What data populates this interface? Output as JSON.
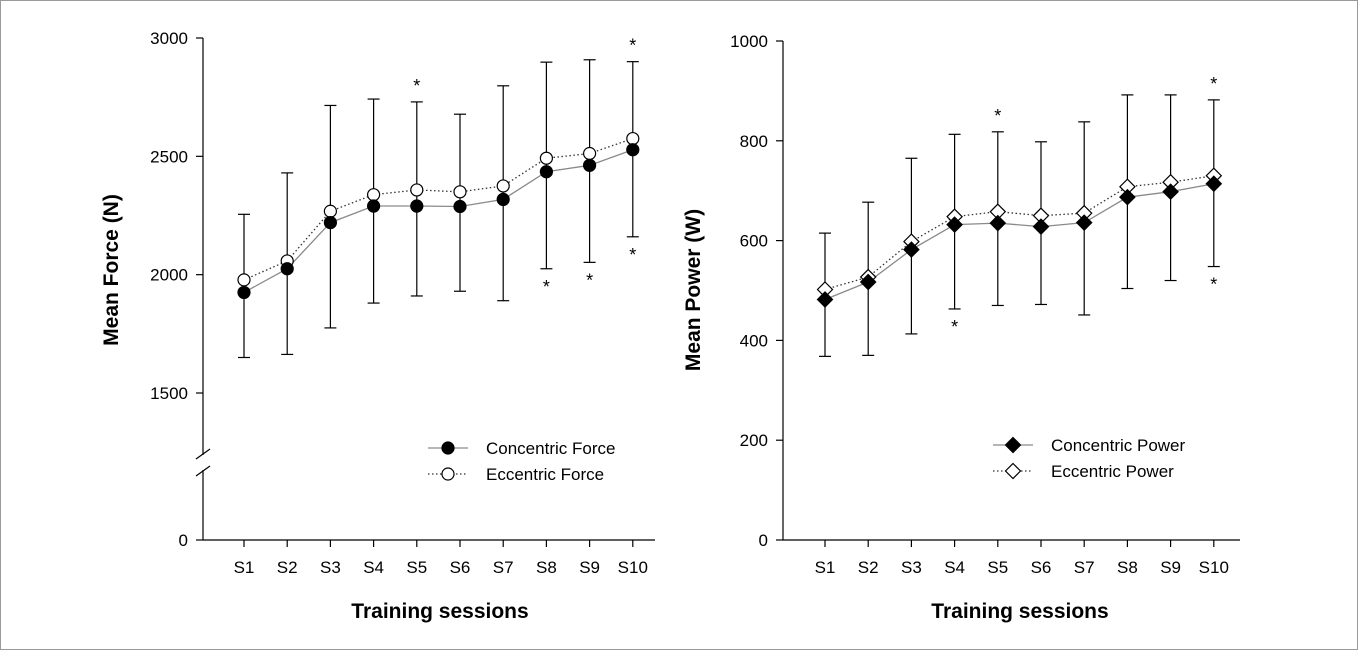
{
  "chart_data": [
    {
      "type": "line",
      "xlabel": "Training sessions",
      "ylabel": "Mean Force (N)",
      "categories": [
        "S1",
        "S2",
        "S3",
        "S4",
        "S5",
        "S6",
        "S7",
        "S8",
        "S9",
        "S10"
      ],
      "y_axis_break": true,
      "yticks": [
        0,
        1500,
        2000,
        2500,
        3000
      ],
      "ylim": [
        1200,
        3000
      ],
      "series": [
        {
          "name": "Concentric Force",
          "marker": "filled-circle",
          "line_style": "solid",
          "color": "#8a8a8a",
          "values": [
            1925,
            2025,
            2220,
            2290,
            2290,
            2288,
            2318,
            2435,
            2462,
            2528
          ],
          "error_lower": [
            1650,
            1663,
            1775,
            1880,
            1910,
            1930,
            1890,
            2025,
            2052,
            2160
          ]
        },
        {
          "name": "Eccentric Force",
          "marker": "open-circle",
          "line_style": "dotted",
          "color": "#333333",
          "values": [
            1978,
            2058,
            2268,
            2338,
            2358,
            2350,
            2375,
            2492,
            2512,
            2575
          ],
          "error_upper": [
            2255,
            2430,
            2715,
            2742,
            2730,
            2678,
            2798,
            2898,
            2908,
            2900
          ]
        }
      ],
      "annotations": [
        {
          "text": "*",
          "category": "S5",
          "position": "above"
        },
        {
          "text": "*",
          "category": "S10",
          "position": "above"
        },
        {
          "text": "*",
          "category": "S8",
          "position": "below"
        },
        {
          "text": "*",
          "category": "S9",
          "position": "below"
        },
        {
          "text": "*",
          "category": "S10",
          "position": "below"
        }
      ],
      "legend_position": "bottom-right"
    },
    {
      "type": "line",
      "xlabel": "Training sessions",
      "ylabel": "Mean Power (W)",
      "categories": [
        "S1",
        "S2",
        "S3",
        "S4",
        "S5",
        "S6",
        "S7",
        "S8",
        "S9",
        "S10"
      ],
      "yticks": [
        0,
        200,
        400,
        600,
        800,
        1000
      ],
      "ylim": [
        0,
        1000
      ],
      "series": [
        {
          "name": "Concentric Power",
          "marker": "filled-diamond",
          "line_style": "solid",
          "color": "#8a8a8a",
          "values": [
            482,
            517,
            582,
            632,
            635,
            628,
            636,
            687,
            698,
            714
          ],
          "error_lower": [
            368,
            370,
            413,
            463,
            470,
            472,
            451,
            504,
            520,
            548
          ]
        },
        {
          "name": "Eccentric Power",
          "marker": "open-diamond",
          "line_style": "dotted",
          "color": "#333333",
          "values": [
            502,
            527,
            598,
            648,
            658,
            650,
            655,
            708,
            717,
            730
          ],
          "error_upper": [
            615,
            677,
            765,
            813,
            818,
            798,
            838,
            892,
            892,
            882
          ]
        }
      ],
      "annotations": [
        {
          "text": "*",
          "category": "S5",
          "position": "above"
        },
        {
          "text": "*",
          "category": "S10",
          "position": "above"
        },
        {
          "text": "*",
          "category": "S4",
          "position": "below"
        },
        {
          "text": "*",
          "category": "S10",
          "position": "below"
        }
      ],
      "legend_position": "bottom-right"
    }
  ]
}
